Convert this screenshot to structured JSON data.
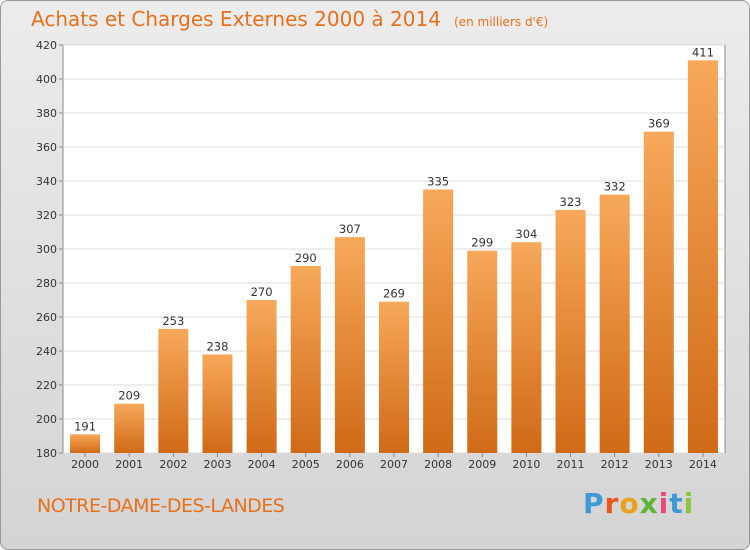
{
  "chart_data": {
    "type": "bar",
    "title": "Achats et Charges Externes 2000 à 2014",
    "subtitle": "(en milliers d'€)",
    "categories": [
      "2000",
      "2001",
      "2002",
      "2003",
      "2004",
      "2005",
      "2006",
      "2007",
      "2008",
      "2009",
      "2010",
      "2011",
      "2012",
      "2013",
      "2014"
    ],
    "values": [
      191,
      209,
      253,
      238,
      270,
      290,
      307,
      269,
      335,
      299,
      304,
      323,
      332,
      369,
      411
    ],
    "ylim": [
      180,
      420
    ],
    "yticks": [
      180,
      200,
      220,
      240,
      260,
      280,
      300,
      320,
      340,
      360,
      380,
      400,
      420
    ],
    "grid": true,
    "bar_color": "#f0963a",
    "xlabel": "",
    "ylabel": ""
  },
  "location_label": "NOTRE-DAME-DES-LANDES",
  "brand": {
    "letters": [
      "P",
      "r",
      "o",
      "x",
      "i",
      "t",
      "i"
    ],
    "colors": [
      "#3d9ad6",
      "#e8581b",
      "#e8a21b",
      "#5cb536",
      "#e84a7a",
      "#3d9ad6",
      "#8cc63f"
    ]
  },
  "colors": {
    "accent": "#e8701b",
    "bar": "#f0963a",
    "bar_dark": "#c8661a"
  }
}
